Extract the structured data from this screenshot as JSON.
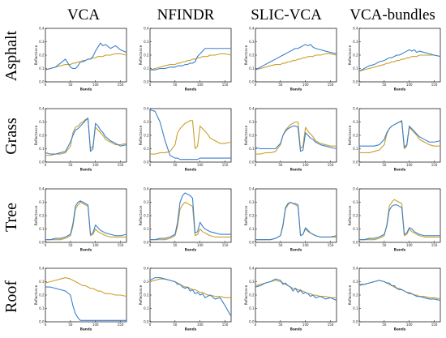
{
  "figure": {
    "methods": [
      "VCA",
      "NFINDR",
      "SLIC-VCA",
      "VCA-bundles"
    ],
    "materials": [
      "Asphalt",
      "Grass",
      "Tree",
      "Roof"
    ],
    "colors": {
      "reference": "#c8a02a",
      "estimate": "#3b7fd0"
    }
  },
  "chart_data": {
    "type": "line",
    "grid": false,
    "x_label": "Bands",
    "y_label": "Reflectance",
    "x_ticks": [
      "0",
      "50",
      "100",
      "150"
    ],
    "y_ticks": [
      "0.0",
      "0.1",
      "0.2",
      "0.3",
      "0.4"
    ],
    "xlim": [
      0,
      162
    ],
    "ylim": [
      0,
      0.4
    ],
    "x": [
      0,
      10,
      20,
      30,
      40,
      50,
      55,
      60,
      65,
      70,
      75,
      80,
      85,
      90,
      95,
      100,
      105,
      110,
      115,
      120,
      130,
      140,
      150,
      162
    ],
    "panels": [
      {
        "row": "Asphalt",
        "col": "VCA",
        "reference": [
          0.09,
          0.1,
          0.11,
          0.12,
          0.13,
          0.13,
          0.14,
          0.14,
          0.15,
          0.15,
          0.16,
          0.16,
          0.17,
          0.17,
          0.18,
          0.18,
          0.19,
          0.19,
          0.19,
          0.2,
          0.2,
          0.21,
          0.21,
          0.2
        ],
        "estimate": [
          0.09,
          0.1,
          0.11,
          0.14,
          0.17,
          0.11,
          0.1,
          0.1,
          0.12,
          0.15,
          0.15,
          0.16,
          0.17,
          0.17,
          0.19,
          0.23,
          0.26,
          0.29,
          0.27,
          0.28,
          0.25,
          0.27,
          0.24,
          0.22
        ]
      },
      {
        "row": "Asphalt",
        "col": "NFINDR",
        "reference": [
          0.09,
          0.1,
          0.11,
          0.12,
          0.13,
          0.13,
          0.14,
          0.14,
          0.15,
          0.15,
          0.16,
          0.16,
          0.17,
          0.17,
          0.18,
          0.18,
          0.19,
          0.19,
          0.19,
          0.2,
          0.2,
          0.21,
          0.21,
          0.2
        ],
        "estimate": [
          0.09,
          0.09,
          0.1,
          0.1,
          0.11,
          0.11,
          0.12,
          0.12,
          0.12,
          0.13,
          0.13,
          0.14,
          0.14,
          0.15,
          0.19,
          0.21,
          0.23,
          0.25,
          0.25,
          0.25,
          0.25,
          0.25,
          0.25,
          0.25
        ]
      },
      {
        "row": "Asphalt",
        "col": "SLIC-VCA",
        "reference": [
          0.09,
          0.1,
          0.11,
          0.12,
          0.13,
          0.13,
          0.14,
          0.14,
          0.15,
          0.15,
          0.16,
          0.16,
          0.17,
          0.17,
          0.18,
          0.18,
          0.19,
          0.19,
          0.19,
          0.2,
          0.2,
          0.21,
          0.21,
          0.2
        ],
        "estimate": [
          0.09,
          0.11,
          0.13,
          0.15,
          0.17,
          0.19,
          0.2,
          0.21,
          0.22,
          0.23,
          0.24,
          0.25,
          0.25,
          0.26,
          0.27,
          0.28,
          0.27,
          0.28,
          0.26,
          0.25,
          0.24,
          0.23,
          0.22,
          0.21
        ]
      },
      {
        "row": "Asphalt",
        "col": "VCA-bundles",
        "reference": [
          0.08,
          0.09,
          0.1,
          0.11,
          0.12,
          0.13,
          0.14,
          0.14,
          0.15,
          0.15,
          0.16,
          0.16,
          0.17,
          0.17,
          0.18,
          0.18,
          0.19,
          0.19,
          0.19,
          0.2,
          0.2,
          0.2,
          0.2,
          0.19
        ],
        "estimate": [
          0.08,
          0.1,
          0.12,
          0.13,
          0.15,
          0.16,
          0.17,
          0.18,
          0.18,
          0.19,
          0.2,
          0.2,
          0.21,
          0.22,
          0.23,
          0.24,
          0.23,
          0.24,
          0.22,
          0.23,
          0.22,
          0.21,
          0.2,
          0.19
        ]
      },
      {
        "row": "Grass",
        "col": "VCA",
        "reference": [
          0.05,
          0.05,
          0.06,
          0.06,
          0.07,
          0.12,
          0.22,
          0.26,
          0.27,
          0.29,
          0.3,
          0.32,
          0.32,
          0.1,
          0.12,
          0.26,
          0.24,
          0.22,
          0.2,
          0.17,
          0.15,
          0.13,
          0.13,
          0.14
        ],
        "estimate": [
          0.07,
          0.06,
          0.06,
          0.07,
          0.08,
          0.15,
          0.2,
          0.24,
          0.25,
          0.27,
          0.29,
          0.31,
          0.33,
          0.08,
          0.1,
          0.29,
          0.27,
          0.24,
          0.22,
          0.19,
          0.16,
          0.14,
          0.12,
          0.13
        ]
      },
      {
        "row": "Grass",
        "col": "NFINDR",
        "reference": [
          0.06,
          0.06,
          0.07,
          0.07,
          0.08,
          0.13,
          0.22,
          0.25,
          0.27,
          0.29,
          0.3,
          0.31,
          0.31,
          0.1,
          0.12,
          0.27,
          0.25,
          0.23,
          0.21,
          0.18,
          0.16,
          0.14,
          0.14,
          0.15
        ],
        "estimate": [
          0.39,
          0.38,
          0.3,
          0.16,
          0.05,
          0.03,
          0.03,
          0.02,
          0.02,
          0.02,
          0.02,
          0.02,
          0.02,
          0.02,
          0.02,
          0.03,
          0.03,
          0.03,
          0.03,
          0.03,
          0.03,
          0.03,
          0.03,
          0.03
        ]
      },
      {
        "row": "Grass",
        "col": "SLIC-VCA",
        "reference": [
          0.06,
          0.06,
          0.07,
          0.07,
          0.08,
          0.13,
          0.2,
          0.24,
          0.26,
          0.28,
          0.29,
          0.3,
          0.3,
          0.1,
          0.12,
          0.26,
          0.23,
          0.21,
          0.19,
          0.16,
          0.14,
          0.13,
          0.12,
          0.12
        ],
        "estimate": [
          0.11,
          0.1,
          0.1,
          0.1,
          0.1,
          0.14,
          0.2,
          0.23,
          0.25,
          0.26,
          0.27,
          0.27,
          0.26,
          0.08,
          0.09,
          0.22,
          0.2,
          0.18,
          0.17,
          0.15,
          0.13,
          0.12,
          0.11,
          0.1
        ]
      },
      {
        "row": "Grass",
        "col": "VCA-bundles",
        "reference": [
          0.07,
          0.07,
          0.07,
          0.08,
          0.09,
          0.13,
          0.21,
          0.25,
          0.27,
          0.28,
          0.29,
          0.3,
          0.3,
          0.1,
          0.12,
          0.26,
          0.24,
          0.22,
          0.2,
          0.17,
          0.15,
          0.13,
          0.12,
          0.12
        ],
        "estimate": [
          0.12,
          0.12,
          0.12,
          0.12,
          0.13,
          0.17,
          0.22,
          0.25,
          0.27,
          0.28,
          0.29,
          0.3,
          0.31,
          0.11,
          0.13,
          0.27,
          0.25,
          0.23,
          0.21,
          0.19,
          0.17,
          0.15,
          0.15,
          0.16
        ]
      },
      {
        "row": "Tree",
        "col": "VCA",
        "reference": [
          0.02,
          0.02,
          0.02,
          0.02,
          0.03,
          0.05,
          0.12,
          0.25,
          0.28,
          0.3,
          0.29,
          0.28,
          0.27,
          0.05,
          0.06,
          0.1,
          0.08,
          0.07,
          0.06,
          0.05,
          0.04,
          0.04,
          0.04,
          0.04
        ],
        "estimate": [
          0.02,
          0.02,
          0.03,
          0.03,
          0.04,
          0.06,
          0.14,
          0.27,
          0.3,
          0.31,
          0.3,
          0.29,
          0.28,
          0.06,
          0.07,
          0.13,
          0.11,
          0.09,
          0.08,
          0.07,
          0.06,
          0.05,
          0.05,
          0.06
        ]
      },
      {
        "row": "Tree",
        "col": "NFINDR",
        "reference": [
          0.02,
          0.02,
          0.02,
          0.02,
          0.03,
          0.05,
          0.12,
          0.25,
          0.28,
          0.3,
          0.29,
          0.28,
          0.27,
          0.05,
          0.06,
          0.1,
          0.08,
          0.07,
          0.06,
          0.05,
          0.04,
          0.04,
          0.04,
          0.04
        ],
        "estimate": [
          0.02,
          0.02,
          0.03,
          0.03,
          0.04,
          0.06,
          0.15,
          0.3,
          0.35,
          0.37,
          0.36,
          0.35,
          0.33,
          0.07,
          0.08,
          0.15,
          0.12,
          0.1,
          0.09,
          0.08,
          0.07,
          0.06,
          0.06,
          0.06
        ]
      },
      {
        "row": "Tree",
        "col": "SLIC-VCA",
        "reference": [
          0.02,
          0.02,
          0.02,
          0.02,
          0.03,
          0.05,
          0.12,
          0.25,
          0.28,
          0.3,
          0.29,
          0.28,
          0.27,
          0.05,
          0.06,
          0.1,
          0.08,
          0.07,
          0.06,
          0.05,
          0.04,
          0.04,
          0.04,
          0.04
        ],
        "estimate": [
          0.02,
          0.02,
          0.02,
          0.02,
          0.03,
          0.05,
          0.13,
          0.26,
          0.29,
          0.3,
          0.29,
          0.29,
          0.28,
          0.05,
          0.06,
          0.11,
          0.09,
          0.07,
          0.06,
          0.05,
          0.04,
          0.04,
          0.04,
          0.05
        ]
      },
      {
        "row": "Tree",
        "col": "VCA-bundles",
        "reference": [
          0.02,
          0.02,
          0.02,
          0.02,
          0.03,
          0.05,
          0.13,
          0.27,
          0.3,
          0.32,
          0.31,
          0.3,
          0.29,
          0.05,
          0.06,
          0.1,
          0.08,
          0.07,
          0.06,
          0.05,
          0.04,
          0.04,
          0.04,
          0.04
        ],
        "estimate": [
          0.02,
          0.02,
          0.03,
          0.03,
          0.04,
          0.06,
          0.12,
          0.24,
          0.27,
          0.28,
          0.28,
          0.27,
          0.26,
          0.06,
          0.07,
          0.11,
          0.1,
          0.08,
          0.07,
          0.06,
          0.05,
          0.05,
          0.05,
          0.05
        ]
      },
      {
        "row": "Roof",
        "col": "VCA",
        "reference": [
          0.29,
          0.3,
          0.31,
          0.32,
          0.33,
          0.32,
          0.31,
          0.3,
          0.29,
          0.28,
          0.27,
          0.27,
          0.26,
          0.25,
          0.25,
          0.24,
          0.23,
          0.23,
          0.22,
          0.21,
          0.21,
          0.2,
          0.2,
          0.19
        ],
        "estimate": [
          0.26,
          0.26,
          0.25,
          0.24,
          0.23,
          0.2,
          0.12,
          0.06,
          0.03,
          0.01,
          0.01,
          0.01,
          0.01,
          0.01,
          0.01,
          0.01,
          0.01,
          0.01,
          0.01,
          0.01,
          0.01,
          0.01,
          0.01,
          0.01
        ]
      },
      {
        "row": "Roof",
        "col": "NFINDR",
        "reference": [
          0.3,
          0.31,
          0.32,
          0.32,
          0.31,
          0.3,
          0.29,
          0.28,
          0.27,
          0.26,
          0.26,
          0.25,
          0.24,
          0.24,
          0.23,
          0.22,
          0.22,
          0.21,
          0.2,
          0.2,
          0.19,
          0.19,
          0.18,
          0.18
        ],
        "estimate": [
          0.31,
          0.33,
          0.33,
          0.32,
          0.31,
          0.3,
          0.28,
          0.28,
          0.26,
          0.25,
          0.26,
          0.23,
          0.24,
          0.21,
          0.22,
          0.2,
          0.21,
          0.18,
          0.19,
          0.2,
          0.17,
          0.18,
          0.12,
          0.04
        ]
      },
      {
        "row": "Roof",
        "col": "SLIC-VCA",
        "reference": [
          0.27,
          0.28,
          0.29,
          0.3,
          0.31,
          0.3,
          0.29,
          0.28,
          0.27,
          0.26,
          0.25,
          0.25,
          0.24,
          0.23,
          0.23,
          0.22,
          0.21,
          0.21,
          0.2,
          0.2,
          0.19,
          0.19,
          0.18,
          0.18
        ],
        "estimate": [
          0.26,
          0.27,
          0.29,
          0.3,
          0.32,
          0.31,
          0.28,
          0.29,
          0.27,
          0.26,
          0.23,
          0.25,
          0.22,
          0.24,
          0.21,
          0.22,
          0.21,
          0.19,
          0.2,
          0.18,
          0.19,
          0.17,
          0.18,
          0.16
        ]
      },
      {
        "row": "Roof",
        "col": "VCA-bundles",
        "reference": [
          0.27,
          0.28,
          0.29,
          0.3,
          0.31,
          0.3,
          0.29,
          0.28,
          0.27,
          0.26,
          0.25,
          0.25,
          0.24,
          0.23,
          0.22,
          0.22,
          0.21,
          0.2,
          0.2,
          0.19,
          0.19,
          0.18,
          0.18,
          0.17
        ],
        "estimate": [
          0.28,
          0.28,
          0.29,
          0.3,
          0.31,
          0.3,
          0.29,
          0.29,
          0.27,
          0.27,
          0.25,
          0.24,
          0.24,
          0.23,
          0.22,
          0.21,
          0.21,
          0.2,
          0.19,
          0.19,
          0.18,
          0.17,
          0.17,
          0.16
        ]
      }
    ]
  }
}
